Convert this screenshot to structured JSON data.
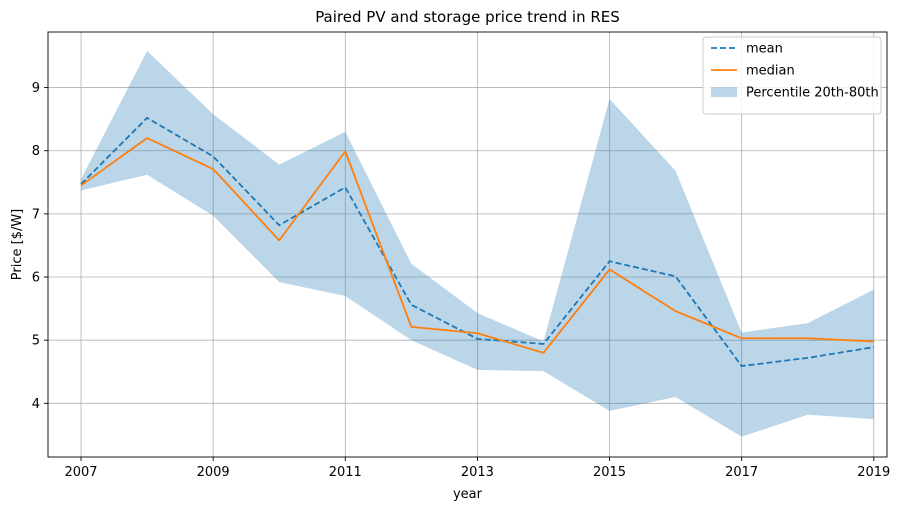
{
  "chart_data": {
    "type": "line",
    "title": "Paired PV and storage price trend in RES",
    "xlabel": "year",
    "ylabel": "Price [$/W]",
    "x": [
      2007,
      2008,
      2009,
      2010,
      2011,
      2012,
      2013,
      2014,
      2015,
      2016,
      2017,
      2018,
      2019
    ],
    "x_ticks": [
      2007,
      2009,
      2011,
      2013,
      2015,
      2017,
      2019
    ],
    "y_ticks": [
      4,
      5,
      6,
      7,
      8,
      9
    ],
    "xlim": [
      2006.5,
      2019.2
    ],
    "ylim": [
      3.15,
      9.88
    ],
    "grid": true,
    "legend_position": "top-right",
    "series": [
      {
        "name": "mean",
        "style": "dashed",
        "color": "#1f77b4",
        "values": [
          7.47,
          8.52,
          7.91,
          6.82,
          7.42,
          5.56,
          5.02,
          4.94,
          6.25,
          6.01,
          4.59,
          4.72,
          4.89
        ]
      },
      {
        "name": "median",
        "style": "solid",
        "color": "#ff7f0e",
        "values": [
          7.45,
          8.2,
          7.71,
          6.58,
          7.99,
          5.21,
          5.11,
          4.8,
          6.12,
          5.46,
          5.03,
          5.03,
          4.98
        ]
      }
    ],
    "band": {
      "name": "Percentile 20th-80th",
      "color": "#1f77b4",
      "lower": [
        7.37,
        7.62,
        6.97,
        5.92,
        5.7,
        5.0,
        4.53,
        4.51,
        3.88,
        4.1,
        3.47,
        3.82,
        3.75
      ],
      "upper": [
        7.55,
        9.58,
        8.58,
        7.78,
        8.3,
        6.21,
        5.43,
        4.98,
        8.82,
        7.68,
        5.12,
        5.27,
        5.8
      ]
    }
  }
}
